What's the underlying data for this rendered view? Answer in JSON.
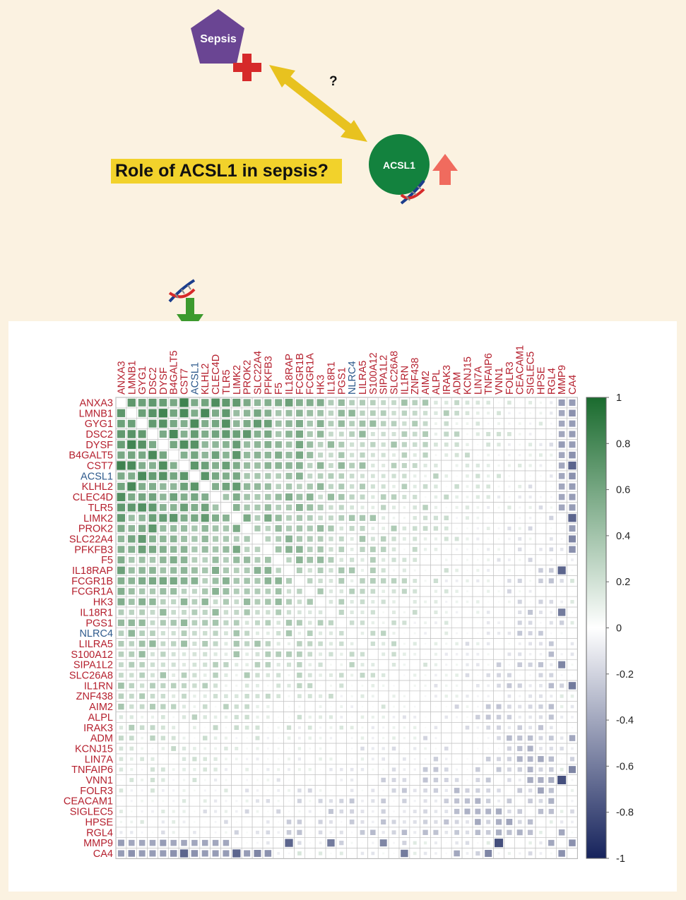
{
  "diagram": {
    "sepsis_label": "Sepsis",
    "acsl1_label": "ACSL1",
    "question_mark": "?",
    "role_question": "Role of ACSL1 in sepsis?",
    "colors": {
      "sepsis": "#6a4593",
      "acsl1": "#13823e",
      "arrow_double": "#f2d22b",
      "up_arrow": "#f06b5e",
      "plus": "#d62a2a",
      "down_arrow": "#3c9a2e",
      "label_bg": "#f2d22b"
    }
  },
  "chart_data": {
    "type": "heatmap",
    "title": "",
    "genes": [
      "ANXA3",
      "LMNB1",
      "GYG1",
      "DSC2",
      "DYSF",
      "B4GALT5",
      "CST7",
      "ACSL1",
      "KLHL2",
      "CLEC4D",
      "TLR5",
      "LIMK2",
      "PROK2",
      "SLC22A4",
      "PFKFB3",
      "F5",
      "IL18RAP",
      "FCGR1B",
      "FCGR1A",
      "HK3",
      "IL18R1",
      "PGS1",
      "NLRC4",
      "LILRA5",
      "S100A12",
      "SIPA1L2",
      "SLC26A8",
      "IL1RN",
      "ZNF438",
      "AIM2",
      "ALPL",
      "IRAK3",
      "ADM",
      "KCNJ15",
      "LIN7A",
      "TNFAIP6",
      "VNN1",
      "FOLR3",
      "CEACAM1",
      "SIGLEC5",
      "HPSE",
      "RGL4",
      "MMP9",
      "CA4"
    ],
    "highlight_genes": [
      "ACSL1",
      "NLRC4"
    ],
    "label_color": "#b5202e",
    "highlight_color": "#2e5a8c",
    "legend_ticks": [
      "1",
      "0.8",
      "0.6",
      "0.4",
      "0.2",
      "0",
      "-0.2",
      "-0.4",
      "-0.6",
      "-0.8",
      "-1"
    ],
    "value_range": [
      -1,
      1
    ],
    "colors": {
      "positive": "#1a6b2e",
      "neutral": "#ffffff",
      "negative": "#16235c"
    },
    "pattern_note": "symmetric gene-gene correlation; strong positive block in upper-left; weak/negative toward MMP9 and CA4",
    "negative_cells": [
      [
        "MMP9",
        "ANXA3",
        -0.45
      ],
      [
        "MMP9",
        "LMNB1",
        -0.4
      ],
      [
        "MMP9",
        "GYG1",
        -0.4
      ],
      [
        "MMP9",
        "DSC2",
        -0.4
      ],
      [
        "MMP9",
        "DYSF",
        -0.45
      ],
      [
        "MMP9",
        "B4GALT5",
        -0.4
      ],
      [
        "MMP9",
        "CST7",
        -0.4
      ],
      [
        "MMP9",
        "ACSL1",
        -0.4
      ],
      [
        "MMP9",
        "KLHL2",
        -0.4
      ],
      [
        "MMP9",
        "CLEC4D",
        -0.4
      ],
      [
        "MMP9",
        "TLR5",
        -0.4
      ],
      [
        "MMP9",
        "IL18RAP",
        -0.7
      ],
      [
        "MMP9",
        "IL18R1",
        -0.6
      ],
      [
        "MMP9",
        "SIPA1L2",
        -0.55
      ],
      [
        "MMP9",
        "VNN1",
        -0.8
      ],
      [
        "CA4",
        "ANXA3",
        -0.45
      ],
      [
        "CA4",
        "LMNB1",
        -0.5
      ],
      [
        "CA4",
        "GYG1",
        -0.45
      ],
      [
        "CA4",
        "DSC2",
        -0.45
      ],
      [
        "CA4",
        "DYSF",
        -0.45
      ],
      [
        "CA4",
        "B4GALT5",
        -0.5
      ],
      [
        "CA4",
        "CST7",
        -0.7
      ],
      [
        "CA4",
        "ACSL1",
        -0.5
      ],
      [
        "CA4",
        "KLHL2",
        -0.45
      ],
      [
        "CA4",
        "CLEC4D",
        -0.45
      ],
      [
        "CA4",
        "TLR5",
        -0.45
      ],
      [
        "CA4",
        "LIMK2",
        -0.7
      ],
      [
        "CA4",
        "PROK2",
        -0.45
      ],
      [
        "CA4",
        "SLC22A4",
        -0.55
      ],
      [
        "CA4",
        "PFKFB3",
        -0.5
      ],
      [
        "CA4",
        "IL1RN",
        -0.6
      ],
      [
        "CA4",
        "TNFAIP6",
        -0.55
      ],
      [
        "MMP9",
        "RGL4",
        -0.4
      ],
      [
        "MMP9",
        "CA4",
        -0.5
      ],
      [
        "HPSE",
        "SIGLEC5",
        -0.3
      ],
      [
        "RGL4",
        "MMP9",
        -0.4
      ],
      [
        "IL18RAP",
        "MMP9",
        -0.7
      ],
      [
        "IL18R1",
        "MMP9",
        -0.6
      ],
      [
        "VNN1",
        "MMP9",
        -0.8
      ],
      [
        "LIMK2",
        "CA4",
        -0.7
      ],
      [
        "CST7",
        "CA4",
        -0.7
      ],
      [
        "ADM",
        "CA4",
        -0.4
      ],
      [
        "TNFAIP6",
        "CA4",
        -0.55
      ]
    ]
  }
}
